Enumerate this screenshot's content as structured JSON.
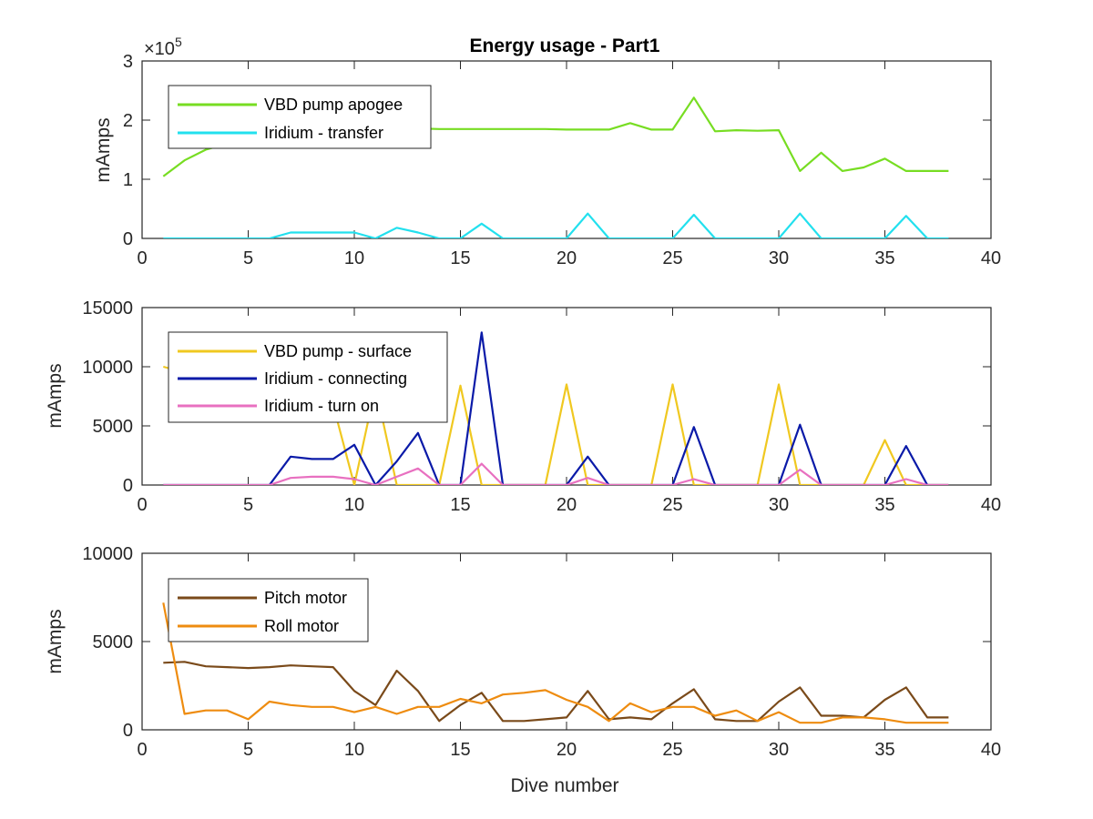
{
  "chart_data": [
    {
      "type": "line",
      "title": "Energy usage - Part1",
      "ylabel": "mAmps",
      "xlabel": "",
      "xlim": [
        0,
        40
      ],
      "ylim": [
        0,
        300000
      ],
      "xticks": [
        0,
        5,
        10,
        15,
        20,
        25,
        30,
        35,
        40
      ],
      "xtick_labels": [
        "0",
        "5",
        "10",
        "15",
        "20",
        "25",
        "30",
        "35",
        "40"
      ],
      "yticks": [
        0,
        100000,
        200000,
        300000
      ],
      "ytick_labels": [
        "0",
        "1",
        "2",
        "3"
      ],
      "y_exponent_label": "×10",
      "y_exponent_power": "5",
      "legend_position": "top-left",
      "grid": false,
      "x": [
        1,
        2,
        3,
        4,
        5,
        6,
        7,
        8,
        9,
        10,
        11,
        12,
        13,
        14,
        15,
        16,
        17,
        18,
        19,
        20,
        21,
        22,
        23,
        24,
        25,
        26,
        27,
        28,
        29,
        30,
        31,
        32,
        33,
        34,
        35,
        36,
        37,
        38
      ],
      "series": [
        {
          "name": "VBD pump apogee",
          "color": "#77dd22",
          "values": [
            105000,
            132000,
            150000,
            160000,
            168000,
            172000,
            176000,
            179000,
            182000,
            184000,
            185000,
            186000,
            186000,
            185000,
            185000,
            185000,
            185000,
            185000,
            185000,
            184000,
            184000,
            184000,
            195000,
            184000,
            184000,
            238000,
            181000,
            183000,
            182000,
            183000,
            114000,
            145000,
            114000,
            120000,
            135000,
            114000,
            114000,
            114000
          ]
        },
        {
          "name": "Iridium - transfer",
          "color": "#22e0ee",
          "values": [
            0,
            0,
            0,
            0,
            0,
            0,
            10000,
            10000,
            10000,
            10000,
            0,
            18000,
            10000,
            0,
            0,
            25000,
            0,
            0,
            0,
            0,
            42000,
            0,
            0,
            0,
            0,
            40000,
            0,
            0,
            0,
            0,
            42000,
            0,
            0,
            0,
            0,
            38000,
            0,
            0
          ]
        }
      ]
    },
    {
      "type": "line",
      "title": "",
      "ylabel": "mAmps",
      "xlabel": "",
      "xlim": [
        0,
        40
      ],
      "ylim": [
        0,
        15000
      ],
      "xticks": [
        0,
        5,
        10,
        15,
        20,
        25,
        30,
        35,
        40
      ],
      "xtick_labels": [
        "0",
        "5",
        "10",
        "15",
        "20",
        "25",
        "30",
        "35",
        "40"
      ],
      "yticks": [
        0,
        5000,
        10000,
        15000
      ],
      "ytick_labels": [
        "0",
        "5000",
        "10000",
        "15000"
      ],
      "legend_position": "top-left",
      "grid": false,
      "x": [
        1,
        2,
        3,
        4,
        5,
        6,
        7,
        8,
        9,
        10,
        11,
        12,
        13,
        14,
        15,
        16,
        17,
        18,
        19,
        20,
        21,
        22,
        23,
        24,
        25,
        26,
        27,
        28,
        29,
        30,
        31,
        32,
        33,
        34,
        35,
        36,
        37,
        38
      ],
      "series": [
        {
          "name": "VBD pump - surface",
          "color": "#f0c820",
          "values": [
            10000,
            9500,
            9000,
            8500,
            8200,
            8000,
            7500,
            7200,
            6800,
            0,
            8300,
            0,
            0,
            0,
            8400,
            0,
            0,
            0,
            0,
            8500,
            0,
            0,
            0,
            0,
            8500,
            0,
            0,
            0,
            0,
            8500,
            0,
            0,
            0,
            0,
            3800,
            0,
            0,
            0
          ]
        },
        {
          "name": "Iridium - connecting",
          "color": "#0a1aa8",
          "values": [
            0,
            0,
            0,
            0,
            0,
            0,
            2400,
            2200,
            2200,
            3400,
            0,
            2000,
            4400,
            0,
            0,
            12900,
            0,
            0,
            0,
            0,
            2400,
            0,
            0,
            0,
            0,
            4900,
            0,
            0,
            0,
            0,
            5100,
            0,
            0,
            0,
            0,
            3300,
            0,
            0
          ]
        },
        {
          "name": "Iridium - turn on",
          "color": "#e870c0",
          "values": [
            0,
            0,
            0,
            0,
            0,
            0,
            600,
            700,
            700,
            500,
            0,
            700,
            1400,
            0,
            0,
            1800,
            0,
            0,
            0,
            0,
            600,
            0,
            0,
            0,
            0,
            500,
            0,
            0,
            0,
            0,
            1300,
            0,
            0,
            0,
            0,
            500,
            0,
            0
          ]
        }
      ]
    },
    {
      "type": "line",
      "title": "",
      "ylabel": "mAmps",
      "xlabel": "Dive number",
      "xlim": [
        0,
        40
      ],
      "ylim": [
        0,
        10000
      ],
      "xticks": [
        0,
        5,
        10,
        15,
        20,
        25,
        30,
        35,
        40
      ],
      "xtick_labels": [
        "0",
        "5",
        "10",
        "15",
        "20",
        "25",
        "30",
        "35",
        "40"
      ],
      "yticks": [
        0,
        5000,
        10000
      ],
      "ytick_labels": [
        "0",
        "5000",
        "10000"
      ],
      "legend_position": "top-left",
      "grid": false,
      "x": [
        1,
        2,
        3,
        4,
        5,
        6,
        7,
        8,
        9,
        10,
        11,
        12,
        13,
        14,
        15,
        16,
        17,
        18,
        19,
        20,
        21,
        22,
        23,
        24,
        25,
        26,
        27,
        28,
        29,
        30,
        31,
        32,
        33,
        34,
        35,
        36,
        37,
        38
      ],
      "series": [
        {
          "name": "Pitch motor",
          "color": "#7a4a1a",
          "values": [
            3800,
            3850,
            3600,
            3550,
            3500,
            3550,
            3650,
            3600,
            3550,
            2200,
            1400,
            3350,
            2200,
            500,
            1400,
            2100,
            500,
            500,
            600,
            700,
            2200,
            600,
            700,
            600,
            1500,
            2300,
            600,
            500,
            500,
            1600,
            2400,
            800,
            800,
            700,
            1700,
            2400,
            700,
            700
          ]
        },
        {
          "name": "Roll motor",
          "color": "#ee8c10",
          "values": [
            7200,
            900,
            1100,
            1100,
            600,
            1600,
            1400,
            1300,
            1300,
            1000,
            1300,
            900,
            1300,
            1300,
            1750,
            1500,
            2000,
            2100,
            2250,
            1700,
            1300,
            500,
            1500,
            1000,
            1300,
            1300,
            800,
            1100,
            500,
            1000,
            400,
            400,
            700,
            700,
            600,
            400,
            400,
            400
          ]
        }
      ]
    }
  ]
}
